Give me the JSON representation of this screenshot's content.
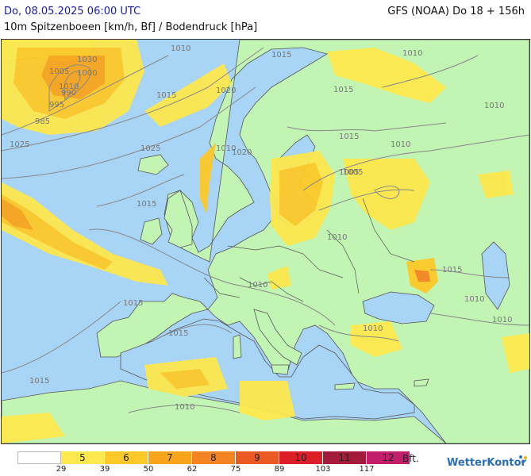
{
  "header": {
    "date_label": "Do, 08.05.2025 06:00 UTC",
    "model_label": "GFS (NOAA) Do 18 + 156h",
    "parameter_label": "10m Spitzenboeen [km/h, Bf] / Bodendruck [hPa]"
  },
  "map": {
    "colors": {
      "sea": "#a8d4f6",
      "land": "#c2f4b4",
      "coast": "#555555",
      "isobar": "#888888"
    },
    "isobar_labels": [
      "1030",
      "1025",
      "1020",
      "1015",
      "1010",
      "1005",
      "1000",
      "995",
      "990",
      "985",
      "1015",
      "1010",
      "1005",
      "1010",
      "1015",
      "1020",
      "1025",
      "1015",
      "1010",
      "1010",
      "1015",
      "1010",
      "1015",
      "1010",
      "1010",
      "1015",
      "1010",
      "1015",
      "1010",
      "1010",
      "1015",
      "1005",
      "1010"
    ]
  },
  "legend": {
    "classes": [
      {
        "bft": "",
        "color": "#ffffff"
      },
      {
        "bft": "5",
        "color": "#fde84e"
      },
      {
        "bft": "6",
        "color": "#fdc928"
      },
      {
        "bft": "7",
        "color": "#f9a51c"
      },
      {
        "bft": "8",
        "color": "#f48421"
      },
      {
        "bft": "9",
        "color": "#ec5a23"
      },
      {
        "bft": "10",
        "color": "#dc1f26"
      },
      {
        "bft": "11",
        "color": "#a31a3a"
      },
      {
        "bft": "12",
        "color": "#c21e6c"
      }
    ],
    "thresholds": [
      "29",
      "39",
      "50",
      "62",
      "75",
      "89",
      "103",
      "117"
    ],
    "unit": "Bft."
  },
  "brand": {
    "name": "WetterKontor",
    "icon": "wetterkontor-logo-icon"
  }
}
